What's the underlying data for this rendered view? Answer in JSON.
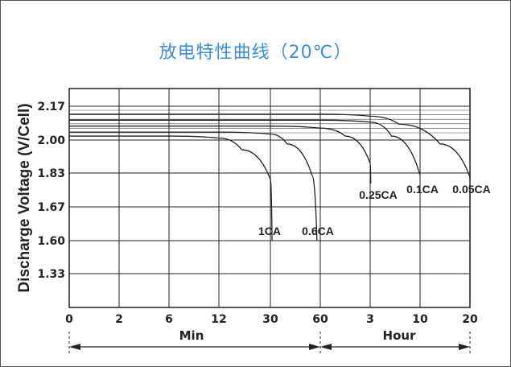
{
  "chart_data": {
    "type": "line",
    "title": "放电特性曲线（20℃）",
    "ylabel": "Discharge Voltage (V/Cell)",
    "y_ticks": [
      "2.17",
      "2.00",
      "1.83",
      "1.67",
      "1.60",
      "1.33"
    ],
    "x_ticks": [
      "0",
      "2",
      "6",
      "12",
      "30",
      "60",
      "3",
      "10",
      "20"
    ],
    "x_unit_min": "Min",
    "x_unit_hour": "Hour",
    "grid": true,
    "series": [
      {
        "name": "1CA",
        "x_minutes": [
          0,
          6,
          12,
          20,
          30,
          31
        ],
        "y": [
          2.02,
          2.02,
          2.01,
          1.95,
          1.8,
          1.6
        ]
      },
      {
        "name": "0.6CA",
        "x_minutes": [
          0,
          12,
          30,
          40,
          55,
          58
        ],
        "y": [
          2.04,
          2.04,
          2.03,
          1.98,
          1.82,
          1.6
        ]
      },
      {
        "name": "0.25CA",
        "x_minutes": [
          0,
          30,
          60,
          120,
          180,
          185
        ],
        "y": [
          2.07,
          2.07,
          2.06,
          2.02,
          1.88,
          1.78
        ]
      },
      {
        "name": "0.1CA",
        "x_minutes": [
          0,
          60,
          180,
          360,
          600
        ],
        "y": [
          2.1,
          2.1,
          2.09,
          2.02,
          1.82
        ]
      },
      {
        "name": "0.05CA",
        "x_minutes": [
          0,
          60,
          180,
          420,
          840,
          1200
        ],
        "y": [
          2.13,
          2.13,
          2.12,
          2.08,
          1.98,
          1.81
        ]
      }
    ]
  }
}
